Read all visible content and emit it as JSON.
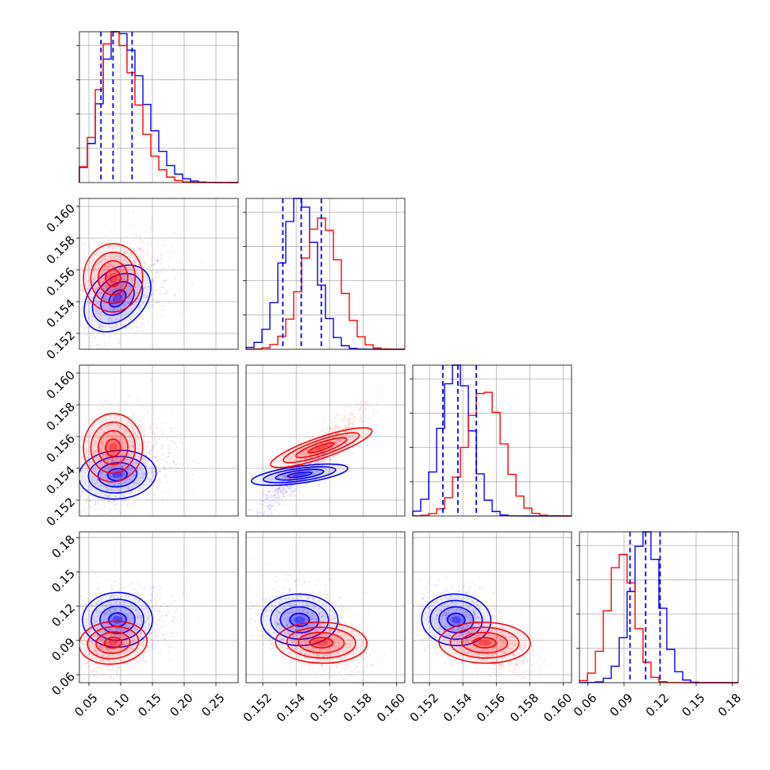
{
  "colors": {
    "blue": "#0000ff",
    "red": "#ff0000",
    "grid": "#b0b0b0"
  },
  "chart_data": {
    "type": "corner",
    "grid": true,
    "series": [
      {
        "color": "#0000ff",
        "means": [
          0.095,
          0.1542,
          0.1536,
          0.108
        ],
        "sds": [
          0.025,
          0.001,
          0.0009,
          0.012
        ],
        "quantiles": [
          [
            0.069,
            0.088,
            0.118
          ],
          [
            0.1532,
            0.1543,
            0.1555
          ],
          [
            0.1528,
            0.1537,
            0.1548
          ],
          [
            0.095,
            0.108,
            0.12
          ]
        ],
        "hist_peaks": [
          1.0,
          1.0,
          1.0,
          1.0
        ]
      },
      {
        "color": "#ff0000",
        "means": [
          0.088,
          0.1555,
          0.1553,
          0.088
        ],
        "sds": [
          0.022,
          0.0011,
          0.0011,
          0.011
        ],
        "hist_peaks": [
          1.0,
          0.87,
          0.82,
          0.85
        ]
      }
    ],
    "params": [
      {
        "range": [
          0.035,
          0.285
        ],
        "ticks": [
          0.05,
          0.1,
          0.15,
          0.2,
          0.25
        ],
        "tick_labels": [
          "0.05",
          "0.10",
          "0.15",
          "0.20",
          "0.25"
        ]
      },
      {
        "range": [
          0.151,
          0.1605
        ],
        "ticks": [
          0.152,
          0.154,
          0.156,
          0.158,
          0.16
        ],
        "tick_labels": [
          "0.152",
          "0.154",
          "0.156",
          "0.158",
          "0.160"
        ]
      },
      {
        "range": [
          0.151,
          0.1605
        ],
        "ticks": [
          0.152,
          0.154,
          0.156,
          0.158,
          0.16
        ],
        "tick_labels": [
          "0.152",
          "0.154",
          "0.156",
          "0.158",
          "0.160"
        ]
      },
      {
        "range": [
          0.053,
          0.185
        ],
        "ticks": [
          0.06,
          0.09,
          0.12,
          0.15,
          0.18
        ],
        "tick_labels": [
          "0.06",
          "0.09",
          "0.12",
          "0.15",
          "0.18"
        ]
      }
    ],
    "correlations": {
      "blue": {
        "0-1": 0.35,
        "0-2": 0.35,
        "0-3": 0.1,
        "1-2": 0.92,
        "1-3": -0.2,
        "2-3": -0.2
      },
      "red": {
        "0-1": 0.35,
        "0-2": 0.35,
        "0-3": 0.35,
        "1-2": 0.92,
        "1-3": -0.4,
        "2-3": -0.4
      }
    },
    "contour_levels_sigma": [
      0.5,
      1.0,
      1.5,
      2.0
    ]
  }
}
